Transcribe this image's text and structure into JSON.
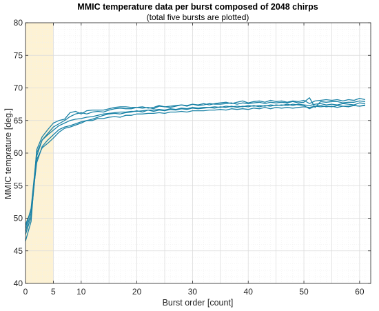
{
  "chart_data": {
    "type": "line",
    "title": "MMIC temperature data per burst composed of 2048 chirps",
    "subtitle": "(total five bursts are plotted)",
    "xlabel": "Burst order [count]",
    "ylabel": "MMIC temprature [deg.]",
    "xlim": [
      0,
      62
    ],
    "ylim": [
      40,
      80
    ],
    "xticks": [
      0,
      5,
      10,
      20,
      30,
      40,
      50,
      60
    ],
    "yticks": [
      40,
      45,
      50,
      55,
      60,
      65,
      70,
      75,
      80
    ],
    "grid": true,
    "minor_grid": true,
    "highlight": {
      "x_from": 0,
      "x_to": 5,
      "color": "#fdf2d4"
    },
    "line_color": "#1a82a6",
    "x": [
      0,
      1,
      2,
      3,
      4,
      5,
      6,
      7,
      8,
      9,
      10,
      11,
      12,
      13,
      14,
      15,
      16,
      17,
      18,
      19,
      20,
      21,
      22,
      23,
      24,
      25,
      26,
      27,
      28,
      29,
      30,
      31,
      32,
      33,
      34,
      35,
      36,
      37,
      38,
      39,
      40,
      41,
      42,
      43,
      44,
      45,
      46,
      47,
      48,
      49,
      50,
      51,
      52,
      53,
      54,
      55,
      56,
      57,
      58,
      59,
      60,
      61
    ],
    "series": [
      {
        "values": [
          46.5,
          49.5,
          60.5,
          62.5,
          63.6,
          64.6,
          65.0,
          65.2,
          66.2,
          66.4,
          66.0,
          66.5,
          66.6,
          66.6,
          66.6,
          66.8,
          67.0,
          67.1,
          67.1,
          67.0,
          67.0,
          67.1,
          66.9,
          67.0,
          67.3,
          67.1,
          67.2,
          67.3,
          67.4,
          67.2,
          67.5,
          67.3,
          67.4,
          67.6,
          67.5,
          67.5,
          67.6,
          67.7,
          67.5,
          67.7,
          67.6,
          67.7,
          67.8,
          67.6,
          67.8,
          67.7,
          67.8,
          67.7,
          67.9,
          67.7,
          67.8,
          68.5,
          67.0,
          67.9,
          67.8,
          67.9,
          67.9,
          67.7,
          67.8,
          67.8,
          68.0,
          67.9
        ]
      },
      {
        "values": [
          48.0,
          50.8,
          59.5,
          62.0,
          63.0,
          64.0,
          64.5,
          65.0,
          65.6,
          66.0,
          66.2,
          66.0,
          66.3,
          66.4,
          66.3,
          66.6,
          66.8,
          66.9,
          66.8,
          66.8,
          67.0,
          66.9,
          67.0,
          66.8,
          67.2,
          67.1,
          67.0,
          67.2,
          67.4,
          67.3,
          67.5,
          67.4,
          67.6,
          67.4,
          67.6,
          67.7,
          67.8,
          67.6,
          67.8,
          68.0,
          67.7,
          67.9,
          68.0,
          67.8,
          68.1,
          67.9,
          68.0,
          67.8,
          68.0,
          67.9,
          68.1,
          67.6,
          68.0,
          68.1,
          68.2,
          68.1,
          68.2,
          68.0,
          68.2,
          68.1,
          68.4,
          68.2
        ]
      },
      {
        "values": [
          49.0,
          51.2,
          58.5,
          61.0,
          62.0,
          62.8,
          63.6,
          64.0,
          64.2,
          64.5,
          64.8,
          65.0,
          65.2,
          65.5,
          65.8,
          66.0,
          66.1,
          66.0,
          66.2,
          66.3,
          66.5,
          66.3,
          66.6,
          66.4,
          66.6,
          66.5,
          66.7,
          66.6,
          66.8,
          66.7,
          66.9,
          66.8,
          66.9,
          67.0,
          66.9,
          67.1,
          67.0,
          67.2,
          67.0,
          67.2,
          67.1,
          67.3,
          67.1,
          67.3,
          67.2,
          67.4,
          67.3,
          67.5,
          67.3,
          67.5,
          67.4,
          67.3,
          67.5,
          67.6,
          67.4,
          67.5,
          67.4,
          67.6,
          67.5,
          67.4,
          67.7,
          67.6
        ]
      },
      {
        "values": [
          47.5,
          50.2,
          59.0,
          60.8,
          61.5,
          62.3,
          63.2,
          63.8,
          64.0,
          64.3,
          64.6,
          65.0,
          65.0,
          65.3,
          65.3,
          65.5,
          65.6,
          65.5,
          65.8,
          65.8,
          66.0,
          66.0,
          66.1,
          66.1,
          66.2,
          66.1,
          66.3,
          66.3,
          66.4,
          66.3,
          66.5,
          66.5,
          66.5,
          66.6,
          66.6,
          66.7,
          66.6,
          66.8,
          66.7,
          66.8,
          66.7,
          66.9,
          66.8,
          67.0,
          66.8,
          67.0,
          66.9,
          67.0,
          66.9,
          67.0,
          67.1,
          67.0,
          67.2,
          67.1,
          67.2,
          67.1,
          67.3,
          67.2,
          67.2,
          67.3,
          67.2,
          67.3
        ]
      },
      {
        "values": [
          48.5,
          51.5,
          60.0,
          62.0,
          62.8,
          63.5,
          64.2,
          64.6,
          65.0,
          65.2,
          65.3,
          65.5,
          65.6,
          65.8,
          66.0,
          66.1,
          66.2,
          66.3,
          66.3,
          66.4,
          66.4,
          66.5,
          66.6,
          66.6,
          66.7,
          66.6,
          66.8,
          66.7,
          66.9,
          66.8,
          67.0,
          66.9,
          67.0,
          67.0,
          67.1,
          67.0,
          67.2,
          67.1,
          67.2,
          67.1,
          67.3,
          67.2,
          67.3,
          67.2,
          67.4,
          67.3,
          67.4,
          67.3,
          67.5,
          67.4,
          67.3,
          66.8,
          67.2,
          67.3,
          67.1,
          67.2,
          67.0,
          67.2,
          67.1,
          67.3,
          67.2,
          67.4
        ]
      }
    ]
  }
}
